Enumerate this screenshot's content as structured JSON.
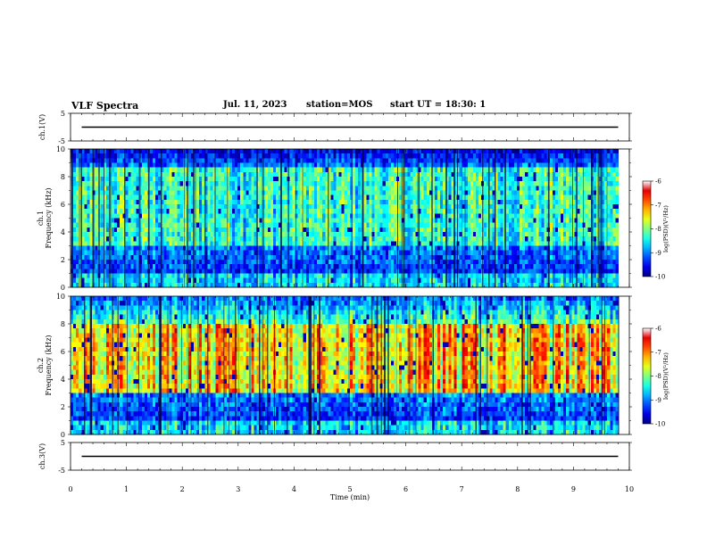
{
  "header": {
    "title": "VLF Spectra",
    "date": "Jul. 11, 2023",
    "station": "station=MOS",
    "start_ut": "start UT = 18:30: 1"
  },
  "chart_data": {
    "type": "heatmap",
    "x": {
      "label": "Time (min)",
      "range": [
        0,
        10
      ],
      "ticks": [
        0,
        1,
        2,
        3,
        4,
        5,
        6,
        7,
        8,
        9,
        10
      ]
    },
    "panels": [
      {
        "kind": "line",
        "ylabel": "ch.1(V)",
        "yrange": [
          -5,
          5
        ],
        "yticks": [
          5,
          -5
        ],
        "series_level": 0,
        "x_end": 9.8
      },
      {
        "kind": "spectrogram",
        "ylabel": "ch.1\nFrequency (kHz)",
        "yrange": [
          0,
          10
        ],
        "yticks": [
          0,
          2,
          4,
          6,
          8,
          10
        ],
        "x_end": 9.8,
        "band_kHz": [
          3,
          8.8
        ],
        "band_level": 0.55,
        "colorbar": {
          "label": "log(PSD)(V²/Hz)",
          "range": [
            -10,
            -6
          ],
          "ticks": [
            -6,
            -7,
            -8,
            -9,
            -10
          ]
        }
      },
      {
        "kind": "spectrogram",
        "ylabel": "ch.2\nFrequency (kHz)",
        "yrange": [
          0,
          10
        ],
        "yticks": [
          0,
          2,
          4,
          6,
          8,
          10
        ],
        "x_end": 9.8,
        "band_kHz": [
          3,
          8
        ],
        "band_level": 0.85,
        "colorbar": {
          "label": "log(PSD)(V²/Hz)",
          "range": [
            -10,
            -6
          ],
          "ticks": [
            -6,
            -7,
            -8,
            -9,
            -10
          ]
        }
      },
      {
        "kind": "line",
        "ylabel": "ch.3(V)",
        "yrange": [
          -5,
          5
        ],
        "yticks": [
          5,
          -5
        ],
        "series_level": 0,
        "x_end": 9.8
      }
    ]
  }
}
